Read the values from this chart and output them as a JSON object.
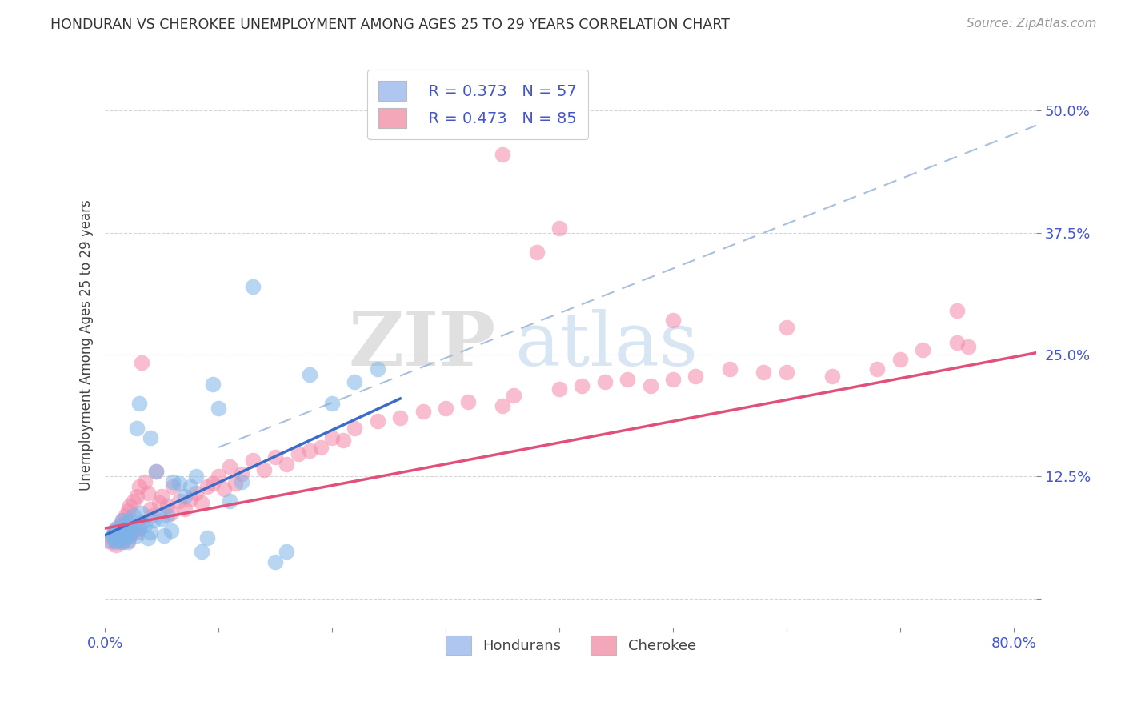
{
  "title": "HONDURAN VS CHEROKEE UNEMPLOYMENT AMONG AGES 25 TO 29 YEARS CORRELATION CHART",
  "source": "Source: ZipAtlas.com",
  "ylabel": "Unemployment Among Ages 25 to 29 years",
  "xlim": [
    0.0,
    0.82
  ],
  "ylim": [
    -0.03,
    0.55
  ],
  "xticks": [
    0.0,
    0.1,
    0.2,
    0.3,
    0.4,
    0.5,
    0.6,
    0.7,
    0.8
  ],
  "xticklabels": [
    "0.0%",
    "",
    "",
    "",
    "",
    "",
    "",
    "",
    "80.0%"
  ],
  "yticks": [
    0.0,
    0.125,
    0.25,
    0.375,
    0.5
  ],
  "yticklabels": [
    "",
    "12.5%",
    "25.0%",
    "37.5%",
    "50.0%"
  ],
  "legend_r1": "R = 0.373",
  "legend_n1": "N = 57",
  "legend_r2": "R = 0.473",
  "legend_n2": "N = 85",
  "legend_color1": "#aec6f0",
  "legend_color2": "#f4a7b9",
  "color_honduran": "#7eb3e8",
  "color_cherokee": "#f48aaa",
  "trend_color_honduran": "#3a6cc8",
  "trend_color_cherokee": "#e0507a",
  "trend_dash_color": "#a0b8d8",
  "watermark_zip": "ZIP",
  "watermark_atlas": "atlas",
  "honduran_x": [
    0.005,
    0.007,
    0.008,
    0.01,
    0.01,
    0.01,
    0.01,
    0.012,
    0.013,
    0.015,
    0.015,
    0.015,
    0.017,
    0.018,
    0.018,
    0.02,
    0.02,
    0.02,
    0.02,
    0.022,
    0.022,
    0.025,
    0.025,
    0.028,
    0.028,
    0.03,
    0.03,
    0.032,
    0.032,
    0.035,
    0.038,
    0.04,
    0.04,
    0.043,
    0.045,
    0.05,
    0.052,
    0.055,
    0.058,
    0.06,
    0.065,
    0.07,
    0.075,
    0.08,
    0.085,
    0.09,
    0.095,
    0.1,
    0.11,
    0.12,
    0.13,
    0.15,
    0.16,
    0.18,
    0.2,
    0.22,
    0.24
  ],
  "honduran_y": [
    0.06,
    0.065,
    0.07,
    0.058,
    0.062,
    0.068,
    0.072,
    0.06,
    0.065,
    0.058,
    0.075,
    0.08,
    0.068,
    0.07,
    0.062,
    0.058,
    0.065,
    0.072,
    0.078,
    0.068,
    0.08,
    0.07,
    0.085,
    0.065,
    0.175,
    0.072,
    0.2,
    0.078,
    0.088,
    0.075,
    0.062,
    0.068,
    0.165,
    0.08,
    0.13,
    0.082,
    0.065,
    0.085,
    0.07,
    0.12,
    0.118,
    0.105,
    0.115,
    0.125,
    0.048,
    0.062,
    0.22,
    0.195,
    0.1,
    0.12,
    0.32,
    0.038,
    0.048,
    0.23,
    0.2,
    0.222,
    0.235
  ],
  "cherokee_x": [
    0.005,
    0.007,
    0.008,
    0.01,
    0.01,
    0.01,
    0.012,
    0.013,
    0.015,
    0.015,
    0.018,
    0.018,
    0.02,
    0.02,
    0.02,
    0.022,
    0.022,
    0.025,
    0.025,
    0.028,
    0.028,
    0.03,
    0.03,
    0.032,
    0.035,
    0.038,
    0.04,
    0.042,
    0.045,
    0.048,
    0.05,
    0.055,
    0.058,
    0.06,
    0.065,
    0.07,
    0.075,
    0.08,
    0.085,
    0.09,
    0.095,
    0.1,
    0.105,
    0.11,
    0.115,
    0.12,
    0.13,
    0.14,
    0.15,
    0.16,
    0.17,
    0.18,
    0.19,
    0.2,
    0.21,
    0.22,
    0.24,
    0.26,
    0.28,
    0.3,
    0.32,
    0.35,
    0.36,
    0.38,
    0.4,
    0.42,
    0.44,
    0.46,
    0.48,
    0.5,
    0.52,
    0.55,
    0.58,
    0.6,
    0.64,
    0.68,
    0.7,
    0.72,
    0.75,
    0.76,
    0.35,
    0.4,
    0.5,
    0.6,
    0.75
  ],
  "cherokee_y": [
    0.058,
    0.062,
    0.068,
    0.055,
    0.06,
    0.07,
    0.065,
    0.075,
    0.058,
    0.08,
    0.068,
    0.085,
    0.06,
    0.072,
    0.09,
    0.065,
    0.095,
    0.07,
    0.1,
    0.068,
    0.105,
    0.072,
    0.115,
    0.242,
    0.12,
    0.108,
    0.092,
    0.085,
    0.13,
    0.098,
    0.105,
    0.095,
    0.088,
    0.115,
    0.1,
    0.092,
    0.102,
    0.108,
    0.098,
    0.115,
    0.118,
    0.125,
    0.112,
    0.135,
    0.118,
    0.128,
    0.142,
    0.132,
    0.145,
    0.138,
    0.148,
    0.152,
    0.155,
    0.165,
    0.162,
    0.175,
    0.182,
    0.185,
    0.192,
    0.195,
    0.202,
    0.198,
    0.208,
    0.355,
    0.215,
    0.218,
    0.222,
    0.225,
    0.218,
    0.225,
    0.228,
    0.235,
    0.232,
    0.232,
    0.228,
    0.235,
    0.245,
    0.255,
    0.262,
    0.258,
    0.455,
    0.38,
    0.285,
    0.278,
    0.295
  ],
  "blue_trend_x": [
    0.0,
    0.26
  ],
  "blue_trend_y": [
    0.065,
    0.205
  ],
  "pink_trend_x": [
    0.0,
    0.82
  ],
  "pink_trend_y": [
    0.072,
    0.252
  ],
  "dash_trend_x": [
    0.1,
    0.82
  ],
  "dash_trend_y": [
    0.155,
    0.485
  ]
}
